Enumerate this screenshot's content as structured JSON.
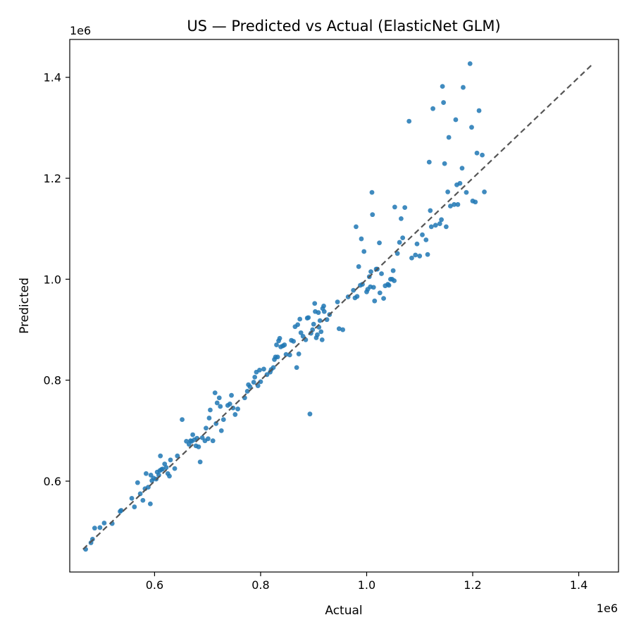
{
  "chart_data": {
    "type": "scatter",
    "title": "US — Predicted vs Actual (ElasticNet GLM)",
    "xlabel": "Actual",
    "ylabel": "Predicted",
    "x_offset_label": "1e6",
    "y_offset_label": "1e6",
    "xlim": [
      0.44,
      1.475
    ],
    "ylim": [
      0.42,
      1.475
    ],
    "x_ticks": [
      0.6,
      0.8,
      1.0,
      1.2,
      1.4
    ],
    "x_tick_labels": [
      "0.6",
      "0.8",
      "1.0",
      "1.2",
      "1.4"
    ],
    "y_ticks": [
      0.6,
      0.8,
      1.0,
      1.2,
      1.4
    ],
    "y_tick_labels": [
      "0.6",
      "0.8",
      "1.0",
      "1.2",
      "1.4"
    ],
    "grid": false,
    "point_color": "#1f77b4",
    "reference_line": {
      "x": [
        0.465,
        1.425
      ],
      "y": [
        0.465,
        1.425
      ],
      "style": "dashed",
      "color": "#555555"
    },
    "points": [
      [
        0.47,
        0.465
      ],
      [
        0.48,
        0.478
      ],
      [
        0.483,
        0.485
      ],
      [
        0.487,
        0.507
      ],
      [
        0.497,
        0.508
      ],
      [
        0.505,
        0.517
      ],
      [
        0.52,
        0.516
      ],
      [
        0.535,
        0.54
      ],
      [
        0.537,
        0.542
      ],
      [
        0.557,
        0.566
      ],
      [
        0.562,
        0.549
      ],
      [
        0.568,
        0.597
      ],
      [
        0.573,
        0.575
      ],
      [
        0.578,
        0.562
      ],
      [
        0.582,
        0.585
      ],
      [
        0.584,
        0.615
      ],
      [
        0.588,
        0.588
      ],
      [
        0.592,
        0.555
      ],
      [
        0.593,
        0.612
      ],
      [
        0.595,
        0.601
      ],
      [
        0.598,
        0.606
      ],
      [
        0.603,
        0.604
      ],
      [
        0.605,
        0.618
      ],
      [
        0.608,
        0.612
      ],
      [
        0.61,
        0.621
      ],
      [
        0.611,
        0.65
      ],
      [
        0.613,
        0.623
      ],
      [
        0.615,
        0.624
      ],
      [
        0.619,
        0.634
      ],
      [
        0.622,
        0.627
      ],
      [
        0.625,
        0.615
      ],
      [
        0.628,
        0.61
      ],
      [
        0.63,
        0.642
      ],
      [
        0.638,
        0.625
      ],
      [
        0.643,
        0.65
      ],
      [
        0.652,
        0.722
      ],
      [
        0.66,
        0.679
      ],
      [
        0.665,
        0.673
      ],
      [
        0.668,
        0.68
      ],
      [
        0.67,
        0.679
      ],
      [
        0.672,
        0.692
      ],
      [
        0.675,
        0.682
      ],
      [
        0.678,
        0.67
      ],
      [
        0.68,
        0.685
      ],
      [
        0.683,
        0.668
      ],
      [
        0.686,
        0.638
      ],
      [
        0.69,
        0.686
      ],
      [
        0.695,
        0.68
      ],
      [
        0.697,
        0.705
      ],
      [
        0.701,
        0.684
      ],
      [
        0.703,
        0.725
      ],
      [
        0.705,
        0.741
      ],
      [
        0.71,
        0.68
      ],
      [
        0.714,
        0.775
      ],
      [
        0.716,
        0.714
      ],
      [
        0.718,
        0.755
      ],
      [
        0.722,
        0.765
      ],
      [
        0.724,
        0.748
      ],
      [
        0.726,
        0.7
      ],
      [
        0.73,
        0.722
      ],
      [
        0.738,
        0.75
      ],
      [
        0.742,
        0.753
      ],
      [
        0.745,
        0.77
      ],
      [
        0.748,
        0.745
      ],
      [
        0.752,
        0.732
      ],
      [
        0.757,
        0.743
      ],
      [
        0.77,
        0.765
      ],
      [
        0.775,
        0.778
      ],
      [
        0.777,
        0.791
      ],
      [
        0.78,
        0.787
      ],
      [
        0.787,
        0.796
      ],
      [
        0.789,
        0.806
      ],
      [
        0.792,
        0.816
      ],
      [
        0.795,
        0.789
      ],
      [
        0.798,
        0.82
      ],
      [
        0.8,
        0.797
      ],
      [
        0.806,
        0.822
      ],
      [
        0.812,
        0.811
      ],
      [
        0.818,
        0.816
      ],
      [
        0.82,
        0.821
      ],
      [
        0.824,
        0.825
      ],
      [
        0.826,
        0.841
      ],
      [
        0.828,
        0.846
      ],
      [
        0.83,
        0.87
      ],
      [
        0.832,
        0.846
      ],
      [
        0.834,
        0.878
      ],
      [
        0.836,
        0.883
      ],
      [
        0.838,
        0.866
      ],
      [
        0.842,
        0.868
      ],
      [
        0.845,
        0.87
      ],
      [
        0.848,
        0.851
      ],
      [
        0.855,
        0.85
      ],
      [
        0.858,
        0.879
      ],
      [
        0.862,
        0.877
      ],
      [
        0.865,
        0.906
      ],
      [
        0.868,
        0.825
      ],
      [
        0.87,
        0.91
      ],
      [
        0.872,
        0.852
      ],
      [
        0.874,
        0.921
      ],
      [
        0.876,
        0.894
      ],
      [
        0.88,
        0.887
      ],
      [
        0.885,
        0.88
      ],
      [
        0.888,
        0.923
      ],
      [
        0.89,
        0.924
      ],
      [
        0.893,
        0.733
      ],
      [
        0.895,
        0.893
      ],
      [
        0.898,
        0.9
      ],
      [
        0.9,
        0.911
      ],
      [
        0.902,
        0.952
      ],
      [
        0.903,
        0.936
      ],
      [
        0.905,
        0.884
      ],
      [
        0.907,
        0.89
      ],
      [
        0.909,
        0.934
      ],
      [
        0.91,
        0.905
      ],
      [
        0.912,
        0.918
      ],
      [
        0.914,
        0.896
      ],
      [
        0.916,
        0.88
      ],
      [
        0.917,
        0.942
      ],
      [
        0.919,
        0.947
      ],
      [
        0.92,
        0.936
      ],
      [
        0.925,
        0.92
      ],
      [
        0.93,
        0.93
      ],
      [
        0.945,
        0.955
      ],
      [
        0.948,
        0.902
      ],
      [
        0.955,
        0.9
      ],
      [
        0.965,
        0.965
      ],
      [
        0.975,
        0.978
      ],
      [
        0.978,
        0.963
      ],
      [
        0.98,
        1.104
      ],
      [
        0.982,
        0.966
      ],
      [
        0.985,
        1.025
      ],
      [
        0.988,
        0.988
      ],
      [
        0.99,
        1.08
      ],
      [
        0.992,
        0.99
      ],
      [
        0.995,
        1.055
      ],
      [
        1.0,
        0.975
      ],
      [
        1.002,
        0.98
      ],
      [
        1.005,
        1.005
      ],
      [
        1.007,
        0.985
      ],
      [
        1.008,
        1.015
      ],
      [
        1.01,
        1.172
      ],
      [
        1.011,
        1.128
      ],
      [
        1.013,
        0.984
      ],
      [
        1.015,
        0.957
      ],
      [
        1.018,
        1.02
      ],
      [
        1.02,
        1.02
      ],
      [
        1.024,
        1.072
      ],
      [
        1.025,
        0.973
      ],
      [
        1.028,
        1.011
      ],
      [
        1.032,
        0.962
      ],
      [
        1.035,
        0.987
      ],
      [
        1.04,
        0.99
      ],
      [
        1.042,
        0.988
      ],
      [
        1.045,
        1.0
      ],
      [
        1.048,
        1.0
      ],
      [
        1.05,
        1.017
      ],
      [
        1.052,
        0.997
      ],
      [
        1.053,
        1.143
      ],
      [
        1.058,
        1.051
      ],
      [
        1.062,
        1.073
      ],
      [
        1.065,
        1.12
      ],
      [
        1.068,
        1.082
      ],
      [
        1.072,
        1.142
      ],
      [
        1.08,
        1.313
      ],
      [
        1.085,
        1.042
      ],
      [
        1.092,
        1.048
      ],
      [
        1.095,
        1.07
      ],
      [
        1.1,
        1.046
      ],
      [
        1.105,
        1.088
      ],
      [
        1.112,
        1.078
      ],
      [
        1.115,
        1.049
      ],
      [
        1.118,
        1.232
      ],
      [
        1.12,
        1.136
      ],
      [
        1.122,
        1.104
      ],
      [
        1.125,
        1.338
      ],
      [
        1.13,
        1.107
      ],
      [
        1.138,
        1.11
      ],
      [
        1.141,
        1.118
      ],
      [
        1.143,
        1.382
      ],
      [
        1.145,
        1.35
      ],
      [
        1.147,
        1.229
      ],
      [
        1.15,
        1.104
      ],
      [
        1.153,
        1.173
      ],
      [
        1.155,
        1.281
      ],
      [
        1.158,
        1.145
      ],
      [
        1.165,
        1.148
      ],
      [
        1.168,
        1.316
      ],
      [
        1.17,
        1.187
      ],
      [
        1.172,
        1.148
      ],
      [
        1.176,
        1.19
      ],
      [
        1.18,
        1.22
      ],
      [
        1.182,
        1.38
      ],
      [
        1.188,
        1.172
      ],
      [
        1.195,
        1.427
      ],
      [
        1.198,
        1.301
      ],
      [
        1.2,
        1.155
      ],
      [
        1.205,
        1.153
      ],
      [
        1.208,
        1.25
      ],
      [
        1.212,
        1.334
      ],
      [
        1.218,
        1.246
      ],
      [
        1.222,
        1.173
      ]
    ]
  }
}
